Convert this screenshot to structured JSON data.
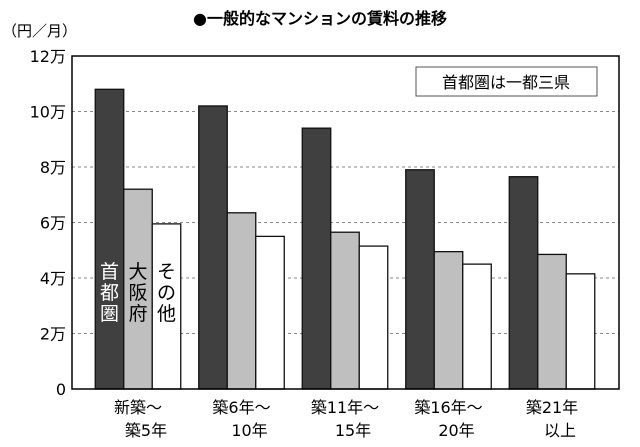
{
  "chart_data": {
    "type": "bar",
    "title": "●一般的なマンションの賃料の推移",
    "ylabel": "（円／月）",
    "ylim": [
      0,
      12
    ],
    "yticks": [
      0,
      2,
      4,
      6,
      8,
      10,
      12
    ],
    "ytick_labels": [
      "0",
      "2万",
      "4万",
      "6万",
      "8万",
      "10万",
      "12万"
    ],
    "grid": true,
    "categories": [
      [
        "新築～",
        "築5年"
      ],
      [
        "築6年～",
        "10年"
      ],
      [
        "築11年～",
        "15年"
      ],
      [
        "築16年～",
        "20年"
      ],
      [
        "築21年",
        "以上"
      ]
    ],
    "series": [
      {
        "name": "首都圏",
        "color": "#404040",
        "values": [
          10.8,
          10.2,
          9.4,
          7.9,
          7.65
        ]
      },
      {
        "name": "大阪府",
        "color": "#bfbfbf",
        "values": [
          7.2,
          6.35,
          5.65,
          4.95,
          4.85
        ]
      },
      {
        "name": "その他",
        "color": "#ffffff",
        "values": [
          5.95,
          5.5,
          5.15,
          4.5,
          4.15
        ]
      }
    ],
    "annotation": "首都圏は一都三県",
    "legend_placement": "inside first group bars"
  }
}
